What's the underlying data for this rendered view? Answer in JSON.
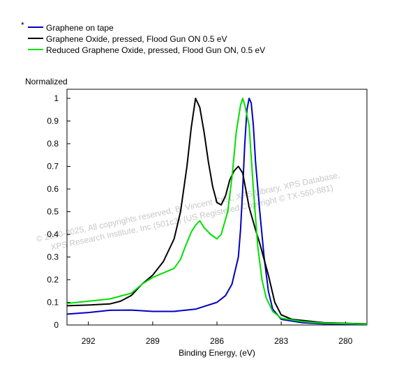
{
  "chart_data": {
    "type": "line",
    "title": "",
    "xlabel": "Binding Energy, (eV)",
    "ylabel": "Normalized",
    "xlim": [
      293,
      279
    ],
    "ylim": [
      0,
      1.04
    ],
    "x_reversed": true,
    "x_ticks": [
      292,
      289,
      286,
      283,
      280
    ],
    "y_ticks": [
      0,
      0.1,
      0.2,
      0.3,
      0.4,
      0.5,
      0.6,
      0.7,
      0.8,
      0.9,
      1
    ],
    "y_tick_labels": [
      "0",
      "0.1",
      "0.2",
      "0.3",
      "0.4",
      "0.5",
      "0.6",
      "0.7",
      "0.8",
      "0.9",
      "1"
    ],
    "grid": false,
    "legend_position": "top-left",
    "legend_marker": "*",
    "watermark_lines": [
      "© 2000-2025,  All copyrights reserved,   B. Vincent Crist,  XPS Library, XPS Database,",
      "XPS Research Institute, Inc (501c3)   (US Registered Copyright © TX-560-881)"
    ],
    "series": [
      {
        "name": "Graphene on tape",
        "color": "#0000c0",
        "points": [
          [
            293,
            0.048
          ],
          [
            292,
            0.055
          ],
          [
            291,
            0.065
          ],
          [
            290,
            0.066
          ],
          [
            289,
            0.06
          ],
          [
            288,
            0.06
          ],
          [
            287,
            0.07
          ],
          [
            286.5,
            0.085
          ],
          [
            286,
            0.1
          ],
          [
            285.6,
            0.13
          ],
          [
            285.3,
            0.18
          ],
          [
            285.0,
            0.3
          ],
          [
            284.9,
            0.42
          ],
          [
            284.8,
            0.6
          ],
          [
            284.7,
            0.8
          ],
          [
            284.6,
            0.95
          ],
          [
            284.5,
            1.0
          ],
          [
            284.4,
            0.98
          ],
          [
            284.3,
            0.88
          ],
          [
            284.2,
            0.72
          ],
          [
            284.0,
            0.5
          ],
          [
            283.8,
            0.3
          ],
          [
            283.6,
            0.15
          ],
          [
            283.4,
            0.07
          ],
          [
            283.0,
            0.025
          ],
          [
            282.0,
            0.01
          ],
          [
            281.0,
            0.005
          ],
          [
            279,
            0.003
          ]
        ]
      },
      {
        "name": "Graphene Oxide, pressed, Flood Gun ON 0.5 eV",
        "color": "#000000",
        "points": [
          [
            293,
            0.085
          ],
          [
            292,
            0.088
          ],
          [
            291,
            0.093
          ],
          [
            290.5,
            0.105
          ],
          [
            290,
            0.13
          ],
          [
            289.5,
            0.18
          ],
          [
            289,
            0.22
          ],
          [
            288.5,
            0.28
          ],
          [
            288,
            0.38
          ],
          [
            287.7,
            0.5
          ],
          [
            287.4,
            0.7
          ],
          [
            287.2,
            0.87
          ],
          [
            287.0,
            1.0
          ],
          [
            286.8,
            0.96
          ],
          [
            286.6,
            0.85
          ],
          [
            286.4,
            0.72
          ],
          [
            286.2,
            0.61
          ],
          [
            286.0,
            0.54
          ],
          [
            285.8,
            0.53
          ],
          [
            285.6,
            0.57
          ],
          [
            285.4,
            0.64
          ],
          [
            285.2,
            0.68
          ],
          [
            285.0,
            0.7
          ],
          [
            284.8,
            0.67
          ],
          [
            284.5,
            0.52
          ],
          [
            284.2,
            0.42
          ],
          [
            284.0,
            0.36
          ],
          [
            283.6,
            0.22
          ],
          [
            283.3,
            0.1
          ],
          [
            283.0,
            0.045
          ],
          [
            282.5,
            0.025
          ],
          [
            281.0,
            0.01
          ],
          [
            279,
            0.005
          ]
        ]
      },
      {
        "name": "Reduced Graphene Oxide, pressed, Flood Gun ON, 0.5 eV",
        "color": "#00e000",
        "points": [
          [
            293,
            0.095
          ],
          [
            292,
            0.105
          ],
          [
            291,
            0.115
          ],
          [
            290,
            0.14
          ],
          [
            289.5,
            0.18
          ],
          [
            289,
            0.21
          ],
          [
            288.5,
            0.23
          ],
          [
            288,
            0.25
          ],
          [
            287.7,
            0.29
          ],
          [
            287.5,
            0.34
          ],
          [
            287.2,
            0.41
          ],
          [
            287.0,
            0.44
          ],
          [
            286.8,
            0.46
          ],
          [
            286.6,
            0.43
          ],
          [
            286.3,
            0.4
          ],
          [
            286.0,
            0.38
          ],
          [
            285.8,
            0.4
          ],
          [
            285.5,
            0.5
          ],
          [
            285.3,
            0.65
          ],
          [
            285.1,
            0.85
          ],
          [
            284.9,
            0.97
          ],
          [
            284.8,
            1.0
          ],
          [
            284.7,
            0.97
          ],
          [
            284.5,
            0.88
          ],
          [
            284.3,
            0.6
          ],
          [
            284.1,
            0.35
          ],
          [
            283.9,
            0.2
          ],
          [
            283.7,
            0.12
          ],
          [
            283.4,
            0.06
          ],
          [
            283.0,
            0.03
          ],
          [
            282.0,
            0.015
          ],
          [
            281.0,
            0.008
          ],
          [
            279,
            0.004
          ]
        ]
      }
    ]
  }
}
